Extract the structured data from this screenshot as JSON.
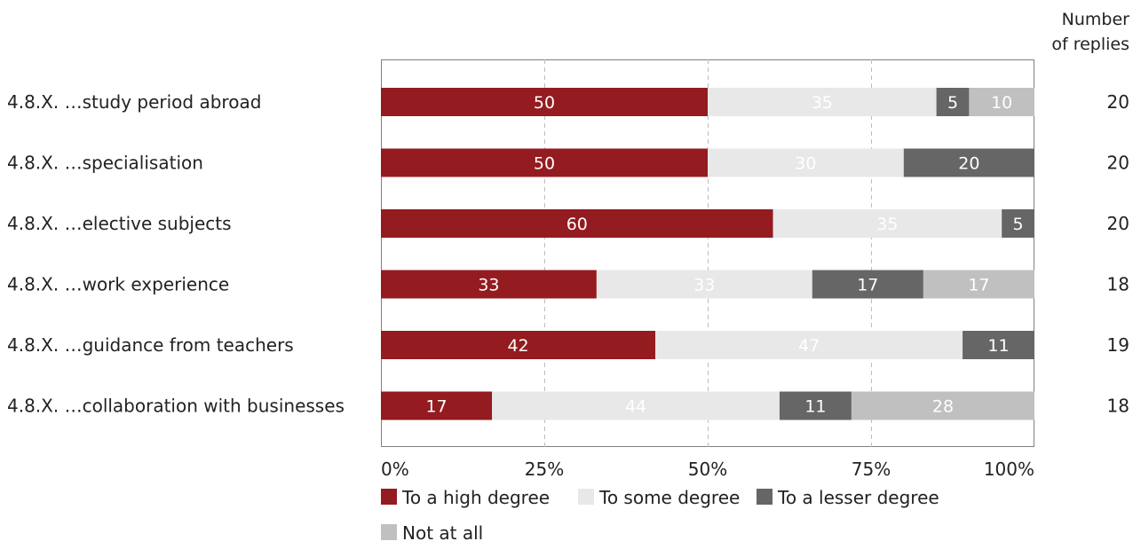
{
  "chart_data": {
    "type": "bar",
    "orientation": "horizontal",
    "stacked": true,
    "normalized": true,
    "categories": [
      "4.8.X. …study period abroad",
      "4.8.X. …specialisation",
      "4.8.X. …elective subjects",
      "4.8.X. …work experience",
      "4.8.X. …guidance from teachers",
      "4.8.X. …collaboration with businesses"
    ],
    "series": [
      {
        "name": "To a high degree",
        "color": "#941b1f",
        "label_color": "#ffffff",
        "values": [
          50,
          50,
          60,
          33,
          42,
          17
        ]
      },
      {
        "name": "To some degree",
        "color": "#e8e8e8",
        "label_color": "#ffffff",
        "values": [
          35,
          30,
          35,
          33,
          47,
          44
        ]
      },
      {
        "name": "To a lesser degree",
        "color": "#666666",
        "label_color": "#ffffff",
        "values": [
          5,
          20,
          5,
          17,
          11,
          11
        ]
      },
      {
        "name": "Not at all",
        "color": "#c0c0c0",
        "label_color": "#ffffff",
        "values": [
          10,
          0,
          0,
          17,
          0,
          28
        ]
      }
    ],
    "x_ticks": [
      "0%",
      "25%",
      "50%",
      "75%",
      "100%"
    ],
    "xlim": [
      0,
      100
    ],
    "grid": "vertical-dashed",
    "legend": "bottom",
    "replies_header": [
      "Number",
      "of replies"
    ],
    "replies": [
      20,
      20,
      20,
      18,
      19,
      18
    ]
  }
}
